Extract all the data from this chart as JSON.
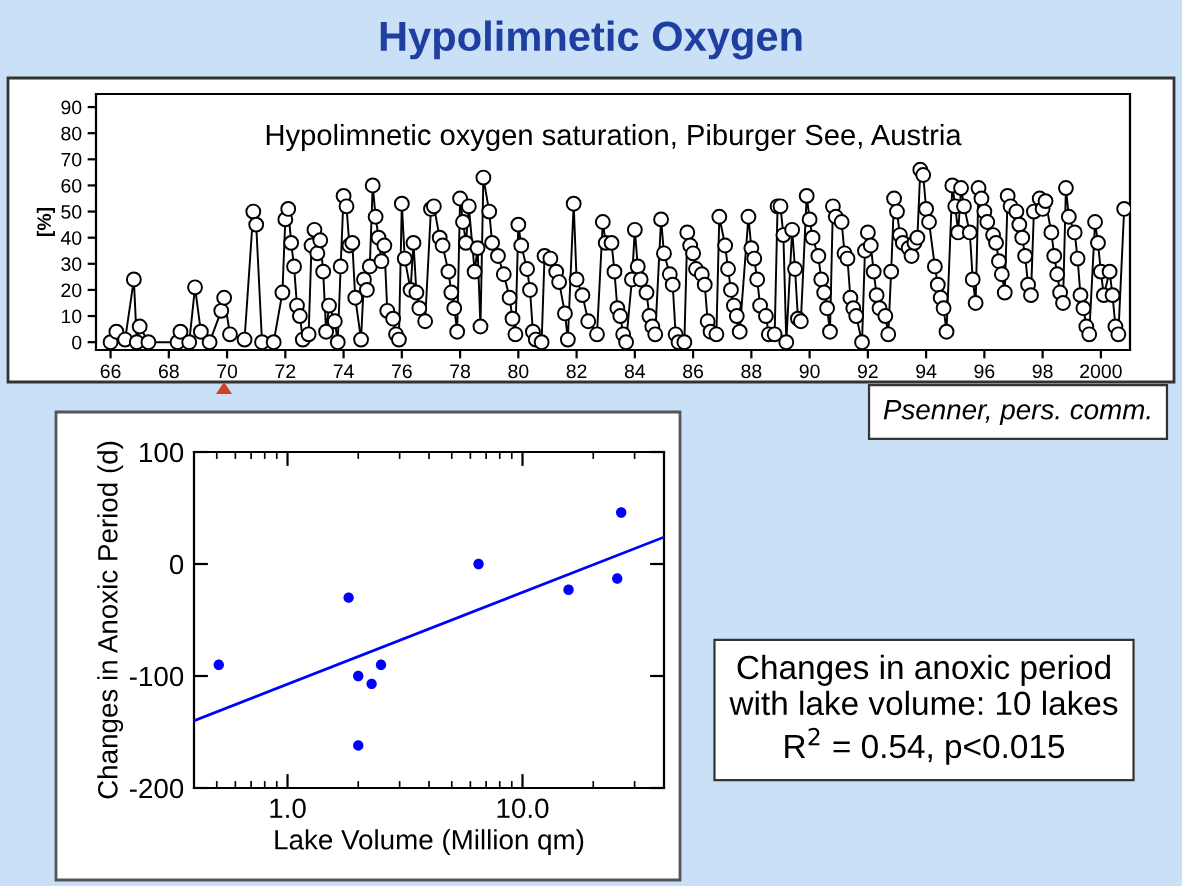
{
  "chart_data": [
    {
      "type": "line",
      "title": "Hypolimnetic Oxygen",
      "subtitle": "Hypolimnetic oxygen saturation, Piburger See, Austria",
      "ylabel": "[%]",
      "annotations": [
        "Psenner, pers. comm."
      ],
      "marker": "circle",
      "line_style": "solid",
      "grid": false,
      "legend": false,
      "xlim": [
        1965.5,
        2001
      ],
      "xticks": [
        {
          "value": 1966,
          "label": "66"
        },
        {
          "value": 1968,
          "label": "68"
        },
        {
          "value": 1970,
          "label": "70"
        },
        {
          "value": 1972,
          "label": "72"
        },
        {
          "value": 1974,
          "label": "74"
        },
        {
          "value": 1976,
          "label": "76"
        },
        {
          "value": 1978,
          "label": "78"
        },
        {
          "value": 1980,
          "label": "80"
        },
        {
          "value": 1982,
          "label": "82"
        },
        {
          "value": 1984,
          "label": "84"
        },
        {
          "value": 1986,
          "label": "86"
        },
        {
          "value": 1988,
          "label": "88"
        },
        {
          "value": 1990,
          "label": "90"
        },
        {
          "value": 1992,
          "label": "92"
        },
        {
          "value": 1994,
          "label": "94"
        },
        {
          "value": 1996,
          "label": "96"
        },
        {
          "value": 1998,
          "label": "98"
        },
        2000
      ],
      "ylim": [
        -3,
        95
      ],
      "yticks": [
        0,
        10,
        20,
        30,
        40,
        50,
        60,
        70,
        80,
        90
      ],
      "series": [
        {
          "color": "#000000",
          "x": [
            1966.0,
            1966.2,
            1966.5,
            1966.8,
            1966.9,
            1967.0,
            1967.3,
            1968.3,
            1968.4,
            1968.7,
            1968.9,
            1969.1,
            1969.4,
            1969.8,
            1969.9,
            1970.1,
            1970.6,
            1970.9,
            1971.0,
            1971.2,
            1971.6,
            1971.9,
            1972.0,
            1972.1,
            1972.2,
            1972.3,
            1972.4,
            1972.5,
            1972.6,
            1972.8,
            1972.9,
            1973.0,
            1973.1,
            1973.2,
            1973.3,
            1973.4,
            1973.5,
            1973.7,
            1973.8,
            1973.9,
            1974.0,
            1974.1,
            1974.2,
            1974.3,
            1974.4,
            1974.6,
            1974.7,
            1974.8,
            1974.9,
            1975.0,
            1975.1,
            1975.2,
            1975.3,
            1975.4,
            1975.5,
            1975.7,
            1975.8,
            1975.9,
            1976.0,
            1976.1,
            1976.3,
            1976.4,
            1976.5,
            1976.6,
            1976.8,
            1977.0,
            1977.1,
            1977.3,
            1977.4,
            1977.6,
            1977.7,
            1977.8,
            1977.9,
            1978.0,
            1978.1,
            1978.2,
            1978.3,
            1978.5,
            1978.6,
            1978.7,
            1978.8,
            1979.0,
            1979.1,
            1979.3,
            1979.5,
            1979.7,
            1979.8,
            1979.9,
            1980.0,
            1980.1,
            1980.3,
            1980.4,
            1980.5,
            1980.6,
            1980.8,
            1980.9,
            1981.1,
            1981.3,
            1981.4,
            1981.6,
            1981.7,
            1981.9,
            1982.0,
            1982.2,
            1982.4,
            1982.7,
            1982.9,
            1983.0,
            1983.2,
            1983.3,
            1983.4,
            1983.5,
            1983.6,
            1983.7,
            1983.9,
            1984.0,
            1984.1,
            1984.2,
            1984.4,
            1984.5,
            1984.6,
            1984.7,
            1984.9,
            1985.0,
            1985.2,
            1985.3,
            1985.4,
            1985.5,
            1985.7,
            1985.8,
            1985.9,
            1986.0,
            1986.1,
            1986.3,
            1986.4,
            1986.5,
            1986.6,
            1986.8,
            1986.9,
            1987.1,
            1987.2,
            1987.3,
            1987.4,
            1987.5,
            1987.6,
            1987.9,
            1988.0,
            1988.1,
            1988.2,
            1988.3,
            1988.5,
            1988.6,
            1988.8,
            1988.9,
            1989.0,
            1989.1,
            1989.2,
            1989.4,
            1989.5,
            1989.6,
            1989.7,
            1989.9,
            1990.0,
            1990.1,
            1990.3,
            1990.4,
            1990.5,
            1990.6,
            1990.7,
            1990.8,
            1990.9,
            1991.1,
            1991.2,
            1991.3,
            1991.4,
            1991.5,
            1991.6,
            1991.8,
            1991.9,
            1992.0,
            1992.1,
            1992.2,
            1992.3,
            1992.4,
            1992.6,
            1992.7,
            1992.8,
            1992.9,
            1993.0,
            1993.1,
            1993.2,
            1993.4,
            1993.5,
            1993.6,
            1993.7,
            1993.8,
            1993.9,
            1994.0,
            1994.1,
            1994.3,
            1994.4,
            1994.5,
            1994.6,
            1994.7,
            1994.9,
            1995.0,
            1995.1,
            1995.2,
            1995.3,
            1995.5,
            1995.6,
            1995.7,
            1995.8,
            1995.9,
            1996.0,
            1996.1,
            1996.3,
            1996.4,
            1996.5,
            1996.6,
            1996.7,
            1996.8,
            1996.9,
            1997.1,
            1997.2,
            1997.3,
            1997.4,
            1997.5,
            1997.6,
            1997.7,
            1997.9,
            1998.0,
            1998.1,
            1998.3,
            1998.4,
            1998.5,
            1998.6,
            1998.7,
            1998.8,
            1998.9,
            1999.1,
            1999.2,
            1999.3,
            1999.4,
            1999.5,
            1999.6,
            1999.8,
            1999.9,
            2000.0,
            2000.1,
            2000.3,
            2000.4,
            2000.5,
            2000.6,
            2000.8
          ],
          "values": [
            0,
            4,
            1,
            24,
            0,
            6,
            0,
            0,
            4,
            0,
            21,
            4,
            0,
            12,
            17,
            3,
            1,
            50,
            45,
            0,
            0,
            19,
            47,
            51,
            38,
            29,
            14,
            10,
            1,
            3,
            37,
            43,
            34,
            39,
            27,
            4,
            14,
            8,
            0,
            29,
            56,
            52,
            37,
            38,
            17,
            1,
            24,
            20,
            29,
            60,
            48,
            40,
            31,
            37,
            12,
            9,
            3,
            1,
            53,
            32,
            20,
            38,
            19,
            13,
            8,
            51,
            52,
            40,
            37,
            27,
            19,
            13,
            4,
            55,
            46,
            38,
            52,
            27,
            36,
            6,
            63,
            50,
            38,
            33,
            26,
            17,
            9,
            3,
            45,
            37,
            28,
            20,
            4,
            1,
            0,
            33,
            32,
            27,
            23,
            11,
            1,
            53,
            24,
            18,
            8,
            3,
            46,
            38,
            38,
            27,
            13,
            10,
            3,
            0,
            24,
            43,
            29,
            24,
            19,
            10,
            6,
            3,
            47,
            34,
            26,
            22,
            3,
            0,
            0,
            42,
            37,
            34,
            28,
            26,
            22,
            8,
            4,
            3,
            48,
            37,
            28,
            20,
            14,
            10,
            4,
            48,
            36,
            32,
            24,
            14,
            10,
            3,
            3,
            52,
            52,
            41,
            0,
            43,
            28,
            9,
            8,
            56,
            47,
            40,
            33,
            24,
            19,
            13,
            4,
            52,
            48,
            46,
            34,
            32,
            17,
            13,
            10,
            0,
            35,
            42,
            37,
            27,
            18,
            13,
            10,
            3,
            27,
            55,
            50,
            41,
            38,
            36,
            33,
            38,
            40,
            66,
            64,
            51,
            46,
            29,
            22,
            17,
            13,
            4,
            60,
            52,
            42,
            59,
            52,
            42,
            24,
            15,
            59,
            55,
            50,
            46,
            41,
            38,
            31,
            26,
            19,
            56,
            52,
            50,
            45,
            40,
            33,
            22,
            18,
            50,
            55,
            51,
            54,
            42,
            33,
            26,
            19,
            15,
            59,
            48,
            42,
            32,
            18,
            13,
            6,
            3,
            46,
            38,
            27,
            18,
            27,
            18,
            6,
            3,
            51
          ]
        }
      ]
    },
    {
      "type": "scatter",
      "xlabel": "Lake Volume (Million qm)",
      "ylabel": "Changes in Anoxic Period (d)",
      "log": "x",
      "marker": "circle",
      "grid": false,
      "legend": false,
      "annotations": [
        "Changes in anoxic period\nwith lake volume: 10 lakes\nR$^{2}$ = 0.54, p<0.015"
      ],
      "xlim": [
        0.4,
        40
      ],
      "xticks": [
        {
          "value": 1,
          "label": "1.0"
        },
        {
          "value": 10,
          "label": "10.0"
        }
      ],
      "ylim": [
        -200,
        100
      ],
      "yticks": [
        -200,
        -100,
        0,
        100
      ],
      "series": [
        {
          "type": "scatter",
          "color": "#0000ff",
          "x": [
            0.51,
            1.82,
            2.0,
            2.0,
            2.28,
            2.5,
            6.5,
            15.7,
            25.3,
            26.3
          ],
          "values": [
            -90,
            -30,
            -100,
            -162,
            -107,
            -90,
            0,
            -23,
            -13,
            46
          ]
        },
        {
          "type": "line",
          "color": "#0000ff",
          "marker": "none",
          "x": [
            0.4,
            40
          ],
          "values": [
            -140,
            24
          ]
        }
      ]
    }
  ]
}
